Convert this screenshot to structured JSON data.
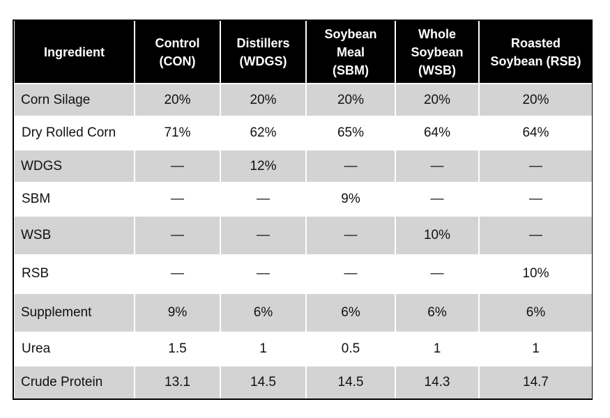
{
  "table": {
    "headers": [
      [
        "Ingredient"
      ],
      [
        "Control",
        "(CON)"
      ],
      [
        "Distillers",
        "(WDGS)"
      ],
      [
        "Soybean",
        "Meal",
        "(SBM)"
      ],
      [
        "Whole",
        "Soybean",
        "(WSB)"
      ],
      [
        "Roasted",
        "Soybean (RSB)"
      ]
    ],
    "rows": [
      [
        "Corn Silage",
        "20%",
        "20%",
        "20%",
        "20%",
        "20%"
      ],
      [
        "Dry Rolled Corn",
        "71%",
        "62%",
        "65%",
        "64%",
        "64%"
      ],
      [
        "WDGS",
        "—",
        "12%",
        "—",
        "—",
        "—"
      ],
      [
        "SBM",
        "—",
        "—",
        "9%",
        "—",
        "—"
      ],
      [
        "WSB",
        "—",
        "—",
        "—",
        "10%",
        "—"
      ],
      [
        "RSB",
        "—",
        "—",
        "—",
        "—",
        "10%"
      ],
      [
        "Supplement",
        "9%",
        "6%",
        "6%",
        "6%",
        "6%"
      ],
      [
        "Urea",
        "1.5",
        "1",
        "0.5",
        "1",
        "1"
      ],
      [
        "Crude Protein",
        "13.1",
        "14.5",
        "14.5",
        "14.3",
        "14.7"
      ]
    ]
  }
}
